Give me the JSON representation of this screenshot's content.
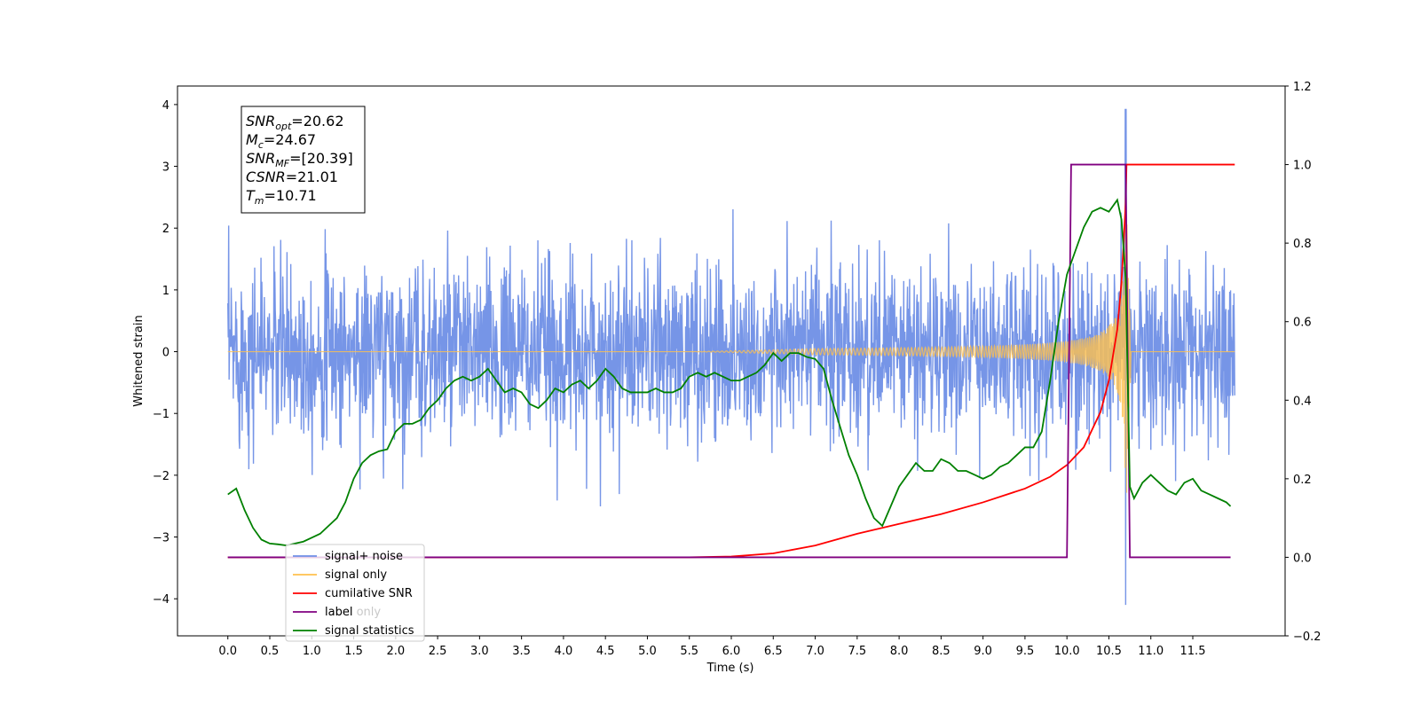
{
  "chart_data": {
    "type": "line",
    "title": "",
    "xlabel": "Time (s)",
    "ylabel": "Whitened strain",
    "y2label": "",
    "xlim": [
      -0.6,
      12.6
    ],
    "ylim": [
      -4.6,
      4.3
    ],
    "y2lim": [
      -0.2,
      1.2
    ],
    "grid": false,
    "legend_position": "lower-left",
    "xticks": [
      "0.0",
      "0.5",
      "1.0",
      "1.5",
      "2.0",
      "2.5",
      "3.0",
      "3.5",
      "4.0",
      "4.5",
      "5.0",
      "5.5",
      "6.0",
      "6.5",
      "7.0",
      "7.5",
      "8.0",
      "8.5",
      "9.0",
      "9.5",
      "10.0",
      "10.5",
      "11.0",
      "11.5"
    ],
    "yticks": [
      "4",
      "3",
      "2",
      "1",
      "0",
      "−1",
      "−2",
      "−3",
      "−4"
    ],
    "y2ticks": [
      "1.2",
      "1.0",
      "0.8",
      "0.6",
      "0.4",
      "0.2",
      "0.0",
      "−0.2"
    ],
    "annotation": {
      "lines": [
        {
          "sym": "SNR",
          "sub": "opt",
          "val": "=20.62"
        },
        {
          "sym": "M",
          "sub": "c",
          "val": "=24.67"
        },
        {
          "sym": "SNR",
          "sub": "MF",
          "val": "=[20.39]"
        },
        {
          "sym": "CSNR",
          "sub": "",
          "val": "=21.01"
        },
        {
          "sym": "T",
          "sub": "m",
          "val": "=10.71"
        }
      ]
    },
    "legend": [
      {
        "label": "signal+ noise",
        "color": "#6f8fe6"
      },
      {
        "label": "signal only",
        "color": "#ffc04d"
      },
      {
        "label": "cumilative SNR",
        "color": "#ff0000"
      },
      {
        "label": "label",
        "color": "#800080"
      },
      {
        "label": "signal statistics",
        "color": "#008000"
      }
    ],
    "legend_ghost_text": "label only",
    "series": [
      {
        "name": "signal+ noise",
        "axis": "left",
        "color": "#6f8fe6",
        "description": "whitened strain noise, approx ±1.5 typical with peaks to ±2.7",
        "t_start": 0.0,
        "t_end": 12.0,
        "envelope": 1.5,
        "peak_max": 3.93,
        "peak_min": -4.1,
        "peak_time": 10.7
      },
      {
        "name": "signal only",
        "axis": "left",
        "color": "#ffc04d",
        "chirp": {
          "t_merge": 10.71,
          "peak_amp": 3.3,
          "min_amp": -3.55,
          "start_visible": 7.0
        }
      },
      {
        "name": "cumilative SNR",
        "axis": "right",
        "color": "#ff0000",
        "x": [
          0.0,
          5.5,
          6.0,
          6.5,
          7.0,
          7.5,
          8.0,
          8.5,
          9.0,
          9.5,
          9.8,
          10.0,
          10.2,
          10.4,
          10.5,
          10.6,
          10.65,
          10.7,
          10.71,
          12.0
        ],
        "values": [
          0.0,
          0.0,
          0.002,
          0.01,
          0.03,
          0.06,
          0.085,
          0.11,
          0.14,
          0.175,
          0.205,
          0.235,
          0.28,
          0.37,
          0.45,
          0.58,
          0.7,
          0.9,
          1.0,
          1.0
        ]
      },
      {
        "name": "label",
        "axis": "right",
        "color": "#800080",
        "x": [
          0.0,
          10.0,
          10.05,
          10.7,
          10.75,
          11.95
        ],
        "values": [
          0.0,
          0.0,
          1.0,
          1.0,
          0.0,
          0.0
        ]
      },
      {
        "name": "signal statistics",
        "axis": "right",
        "color": "#008000",
        "x": [
          0.0,
          0.1,
          0.2,
          0.3,
          0.4,
          0.5,
          0.6,
          0.7,
          0.8,
          0.9,
          1.0,
          1.1,
          1.2,
          1.3,
          1.4,
          1.5,
          1.6,
          1.7,
          1.8,
          1.9,
          2.0,
          2.1,
          2.2,
          2.3,
          2.4,
          2.5,
          2.6,
          2.7,
          2.8,
          2.9,
          3.0,
          3.1,
          3.2,
          3.3,
          3.4,
          3.5,
          3.6,
          3.7,
          3.8,
          3.9,
          4.0,
          4.1,
          4.2,
          4.3,
          4.4,
          4.5,
          4.6,
          4.7,
          4.8,
          4.9,
          5.0,
          5.1,
          5.2,
          5.3,
          5.4,
          5.5,
          5.6,
          5.7,
          5.8,
          5.9,
          6.0,
          6.1,
          6.2,
          6.3,
          6.4,
          6.5,
          6.6,
          6.7,
          6.8,
          6.9,
          7.0,
          7.1,
          7.2,
          7.3,
          7.4,
          7.5,
          7.6,
          7.7,
          7.8,
          7.9,
          8.0,
          8.1,
          8.2,
          8.3,
          8.4,
          8.5,
          8.6,
          8.7,
          8.8,
          8.9,
          9.0,
          9.1,
          9.2,
          9.3,
          9.4,
          9.5,
          9.6,
          9.7,
          9.8,
          9.9,
          10.0,
          10.1,
          10.2,
          10.3,
          10.4,
          10.5,
          10.6,
          10.65,
          10.7,
          10.75,
          10.8,
          10.9,
          11.0,
          11.1,
          11.2,
          11.3,
          11.4,
          11.5,
          11.6,
          11.7,
          11.8,
          11.9,
          11.95
        ],
        "values": [
          0.16,
          0.175,
          0.12,
          0.075,
          0.045,
          0.035,
          0.033,
          0.03,
          0.035,
          0.04,
          0.05,
          0.06,
          0.08,
          0.1,
          0.14,
          0.2,
          0.24,
          0.26,
          0.27,
          0.275,
          0.32,
          0.34,
          0.34,
          0.35,
          0.38,
          0.4,
          0.43,
          0.45,
          0.46,
          0.45,
          0.46,
          0.48,
          0.45,
          0.42,
          0.43,
          0.42,
          0.39,
          0.38,
          0.4,
          0.43,
          0.42,
          0.44,
          0.45,
          0.43,
          0.45,
          0.48,
          0.46,
          0.43,
          0.42,
          0.42,
          0.42,
          0.43,
          0.42,
          0.42,
          0.43,
          0.46,
          0.47,
          0.46,
          0.47,
          0.46,
          0.45,
          0.45,
          0.46,
          0.47,
          0.49,
          0.52,
          0.5,
          0.52,
          0.52,
          0.51,
          0.505,
          0.48,
          0.4,
          0.33,
          0.26,
          0.21,
          0.15,
          0.1,
          0.08,
          0.13,
          0.18,
          0.21,
          0.24,
          0.22,
          0.22,
          0.25,
          0.24,
          0.22,
          0.22,
          0.21,
          0.2,
          0.21,
          0.23,
          0.24,
          0.26,
          0.28,
          0.28,
          0.32,
          0.45,
          0.6,
          0.72,
          0.78,
          0.84,
          0.88,
          0.89,
          0.88,
          0.91,
          0.86,
          0.71,
          0.18,
          0.15,
          0.19,
          0.21,
          0.19,
          0.17,
          0.16,
          0.19,
          0.2,
          0.17,
          0.16,
          0.15,
          0.14,
          0.13
        ]
      }
    ]
  }
}
